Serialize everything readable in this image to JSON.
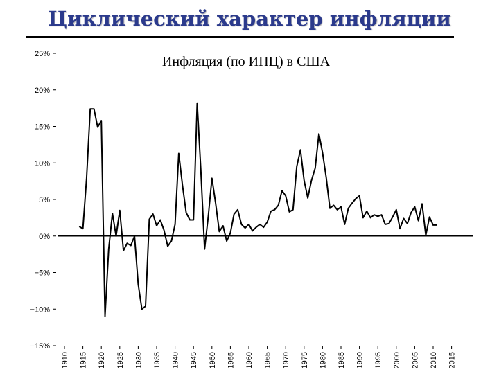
{
  "slide": {
    "title": "Циклический характер инфляции"
  },
  "chart_data": {
    "type": "line",
    "title": "",
    "subtitle": "Инфляция (по ИПЦ) в США",
    "xlabel": "",
    "ylabel": "",
    "xlim": [
      1910,
      2015
    ],
    "ylim": [
      -15,
      25
    ],
    "yticks": [
      25,
      20,
      15,
      10,
      5,
      0,
      -5,
      -10,
      -15
    ],
    "ytick_labels": [
      "25%",
      "20%",
      "15%",
      "10%",
      "5%",
      "0%",
      "−5%",
      "−10%",
      "−15%"
    ],
    "xticks": [
      1910,
      1915,
      1920,
      1925,
      1930,
      1935,
      1940,
      1945,
      1950,
      1955,
      1960,
      1965,
      1970,
      1975,
      1980,
      1985,
      1990,
      1995,
      2000,
      2005,
      2010,
      2015
    ],
    "xtick_labels": [
      "1910",
      "1915",
      "1920",
      "1925",
      "1930",
      "1935",
      "1940",
      "1945",
      "1950",
      "1955",
      "1960",
      "1965",
      "1970",
      "1975",
      "1980",
      "1985",
      "1990",
      "1995",
      "2000",
      "2005",
      "2010",
      "2015"
    ],
    "zero_line": true,
    "grid": false,
    "legend": "none",
    "line_color": "#000000",
    "series": [
      {
        "x": [
          1914,
          1915,
          1916,
          1917,
          1918,
          1919,
          1920,
          1921,
          1922,
          1923,
          1924,
          1925,
          1926,
          1927,
          1928,
          1929,
          1930,
          1931,
          1932,
          1933,
          1934,
          1935,
          1936,
          1937,
          1938,
          1939,
          1940,
          1941,
          1942,
          1943,
          1944,
          1945,
          1946,
          1947,
          1948,
          1949,
          1950,
          1951,
          1952,
          1953,
          1954,
          1955,
          1956,
          1957,
          1958,
          1959,
          1960,
          1961,
          1962,
          1963,
          1964,
          1965,
          1966,
          1967,
          1968,
          1969,
          1970,
          1971,
          1972,
          1973,
          1974,
          1975,
          1976,
          1977,
          1978,
          1979,
          1980,
          1981,
          1982,
          1983,
          1984,
          1985,
          1986,
          1987,
          1988,
          1989,
          1990,
          1991,
          1992,
          1993,
          1994,
          1995,
          1996,
          1997,
          1998,
          1999,
          2000,
          2001,
          2002,
          2003,
          2004,
          2005,
          2006,
          2007,
          2008,
          2009,
          2010,
          2011
        ],
        "y": [
          1.3,
          1.0,
          7.9,
          17.4,
          17.4,
          14.9,
          15.8,
          -11.0,
          -1.8,
          3.1,
          0.0,
          3.5,
          -2.0,
          -1.0,
          -1.3,
          0.0,
          -6.6,
          -10.0,
          -9.6,
          2.3,
          3.0,
          1.4,
          2.2,
          0.8,
          -1.4,
          -0.7,
          1.6,
          11.3,
          7.0,
          3.2,
          2.2,
          2.2,
          18.2,
          9.0,
          -1.8,
          2.7,
          7.9,
          4.5,
          0.6,
          1.4,
          -0.7,
          0.4,
          3.0,
          3.6,
          1.6,
          1.1,
          1.6,
          0.7,
          1.2,
          1.6,
          1.2,
          1.9,
          3.4,
          3.6,
          4.2,
          6.2,
          5.5,
          3.3,
          3.6,
          9.5,
          11.8,
          7.6,
          5.2,
          7.6,
          9.3,
          14.0,
          11.4,
          8.0,
          3.8,
          4.2,
          3.6,
          4.0,
          1.6,
          3.8,
          4.5,
          5.1,
          5.5,
          2.5,
          3.4,
          2.5,
          2.9,
          2.7,
          2.9,
          1.6,
          1.7,
          2.6,
          3.6,
          1.0,
          2.4,
          1.7,
          3.2,
          4.0,
          2.1,
          4.4,
          0.1,
          2.6,
          1.5,
          1.5
        ]
      }
    ]
  }
}
